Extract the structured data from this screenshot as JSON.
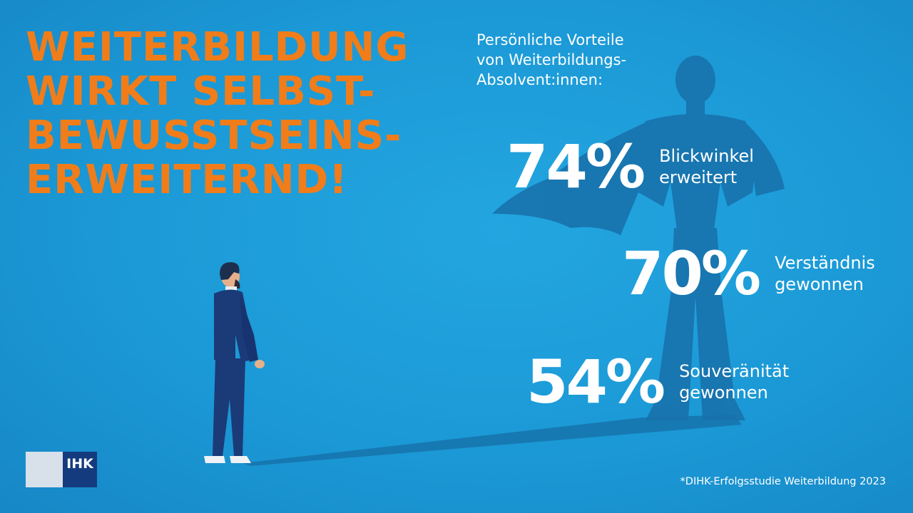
{
  "headline": {
    "lines": [
      "WEITERBILDUNG",
      "WIRKT SELBST-",
      "BEWUSSTSEINS-",
      "ERWEITERND!"
    ]
  },
  "subtitle": {
    "lines": [
      "Persönliche Vorteile",
      "von Weiterbildungs-",
      "Absolvent:innen:"
    ]
  },
  "stats": [
    {
      "value": "74%",
      "label_lines": [
        "Blickwinkel",
        "erweitert"
      ]
    },
    {
      "value": "70%",
      "label_lines": [
        "Verständnis",
        "gewonnen"
      ]
    },
    {
      "value": "54%",
      "label_lines": [
        "Souveränität",
        "gewonnen"
      ]
    }
  ],
  "footnote": "*DIHK-Erfolgsstudie Weiterbildung 2023",
  "logo": {
    "text": "IHK"
  },
  "colors": {
    "background": "#1a9ad6",
    "headline": "#f07d1a",
    "text": "#ffffff",
    "shadow": "#1670a8",
    "suit": "#1b3a78",
    "logo_dark": "#143b7e"
  }
}
